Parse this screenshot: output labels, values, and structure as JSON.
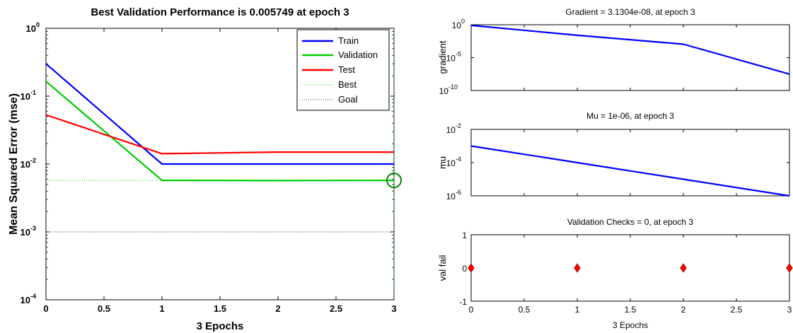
{
  "chart_data": [
    {
      "type": "line",
      "title": "Best Validation Performance is 0.005749 at epoch 3",
      "xlabel": "3 Epochs",
      "ylabel": "Mean Squared Error  (mse)",
      "yscale": "log",
      "xlim": [
        0,
        3
      ],
      "ylim": [
        0.0001,
        1
      ],
      "x_ticks": [
        "0",
        "0.5",
        "1",
        "1.5",
        "2",
        "2.5",
        "3"
      ],
      "y_ticks": [
        {
          "base": "10",
          "exp": "0"
        },
        {
          "base": "10",
          "exp": "-1"
        },
        {
          "base": "10",
          "exp": "-2"
        },
        {
          "base": "10",
          "exp": "-3"
        },
        {
          "base": "10",
          "exp": "-4"
        }
      ],
      "x": [
        0,
        1,
        2,
        3
      ],
      "series": [
        {
          "name": "Train",
          "color": "#0000ff",
          "values": [
            0.3,
            0.01,
            0.01,
            0.01
          ]
        },
        {
          "name": "Validation",
          "color": "#00cc00",
          "values": [
            0.165,
            0.00575,
            0.0057,
            0.005749
          ]
        },
        {
          "name": "Test",
          "color": "#ff0000",
          "values": [
            0.053,
            0.0142,
            0.015,
            0.015
          ]
        }
      ],
      "reference_lines": [
        {
          "name": "Best",
          "color": "#00cc00",
          "style": "dotted",
          "x": 3,
          "y": 0.005749
        },
        {
          "name": "Goal",
          "color": "#333333",
          "style": "dotted",
          "y": 0.001
        }
      ],
      "best_marker": {
        "x": 3,
        "y": 0.005749,
        "shape": "circle",
        "color": "#008800"
      },
      "legend_position": "top-right",
      "grid": false
    },
    {
      "type": "line",
      "title": "Gradient = 3.1304e-08, at epoch 3",
      "xlabel": "",
      "ylabel": "gradient",
      "yscale": "log",
      "xlim": [
        0,
        3
      ],
      "ylim": [
        1e-10,
        1
      ],
      "y_ticks": [
        {
          "base": "10",
          "exp": "0"
        },
        {
          "base": "10",
          "exp": "-5"
        },
        {
          "base": "10",
          "exp": "-10"
        }
      ],
      "x": [
        0,
        1,
        2,
        3
      ],
      "series": [
        {
          "color": "#0000ff",
          "values": [
            0.8,
            0.025,
            0.0011,
            3.1304e-08
          ]
        }
      ],
      "grid": false
    },
    {
      "type": "line",
      "title": "Mu = 1e-06, at epoch 3",
      "xlabel": "",
      "ylabel": "mu",
      "yscale": "log",
      "xlim": [
        0,
        3
      ],
      "ylim": [
        1e-06,
        0.01
      ],
      "y_ticks": [
        {
          "base": "10",
          "exp": "-2"
        },
        {
          "base": "10",
          "exp": "-4"
        },
        {
          "base": "10",
          "exp": "-6"
        }
      ],
      "x": [
        0,
        1,
        2,
        3
      ],
      "series": [
        {
          "color": "#0000ff",
          "values": [
            0.001,
            0.0001,
            1e-05,
            1e-06
          ]
        }
      ],
      "grid": false
    },
    {
      "type": "scatter",
      "title": "Validation Checks = 0, at epoch 3",
      "xlabel": "3 Epochs",
      "ylabel": "val fail",
      "xlim": [
        0,
        3
      ],
      "ylim": [
        -1,
        1
      ],
      "x_ticks": [
        "0",
        "0.5",
        "1",
        "1.5",
        "2",
        "2.5",
        "3"
      ],
      "y_ticks": [
        "1",
        "0",
        "-1"
      ],
      "x": [
        0,
        1,
        2,
        3
      ],
      "series": [
        {
          "color": "#ff0000",
          "marker": "diamond",
          "values": [
            0,
            0,
            0,
            0
          ]
        }
      ],
      "grid": false
    }
  ]
}
